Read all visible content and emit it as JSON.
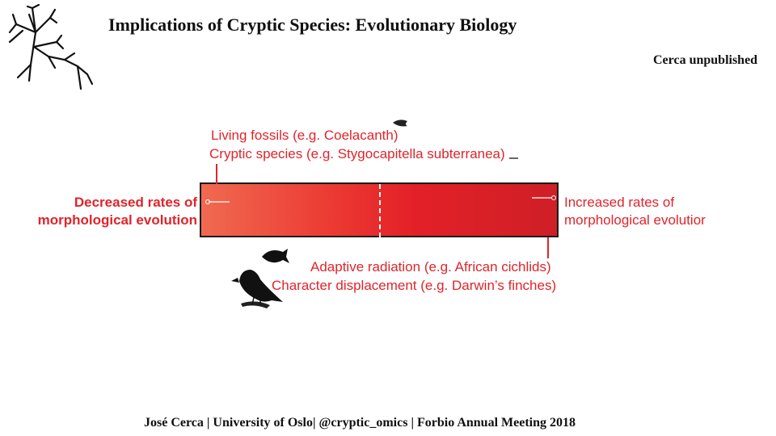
{
  "slide": {
    "title": "Implications of Cryptic Species: Evolutionary Biology",
    "note": "Cerca unpublished",
    "footer": "José Cerca | University of Oslo| @cryptic_omics | Forbio Annual Meeting 2018"
  },
  "diagram": {
    "left_label": [
      "Decreased rates of",
      "morphological evolution"
    ],
    "right_label": [
      "Increased rates of",
      "morphological evolutior"
    ],
    "top_labels": [
      "Living fossils (e.g. Coelacanth)",
      "Cryptic species (e.g. Stygocapitella subterranea)"
    ],
    "bottom_labels": [
      "Adaptive radiation (e.g. African cichlids)",
      "Character displacement (e.g. Darwin’s finches)"
    ],
    "colors": {
      "accent": "#e0242b",
      "gradient_start": "#f06a50",
      "gradient_end": "#cf1f27"
    },
    "icons": [
      "tree-icon",
      "coelacanth-icon",
      "worm-icon",
      "cichlid-icon",
      "finch-icon"
    ]
  }
}
